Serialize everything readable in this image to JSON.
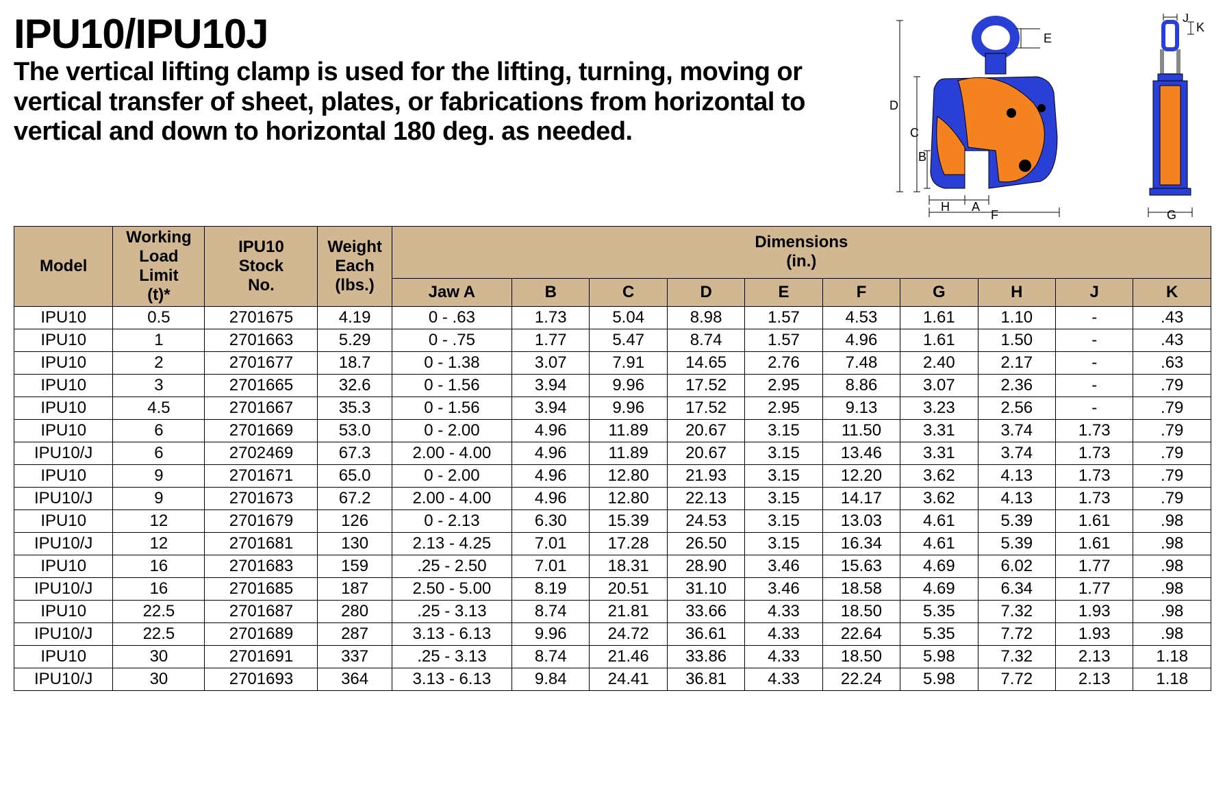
{
  "title": "IPU10/IPU10J",
  "description": "The vertical lifting clamp is used for the lifting, turning, moving or vertical transfer of sheet, plates, or fabrications from horizontal to vertical and down to horizontal 180 deg. as needed.",
  "diagram": {
    "body_color": "#2a3fd6",
    "accent_color": "#f58220",
    "stroke_color": "#000000",
    "label_color": "#000000",
    "labels_front": [
      "A",
      "B",
      "C",
      "D",
      "E",
      "F",
      "H"
    ],
    "labels_side": [
      "G",
      "J",
      "K"
    ]
  },
  "table": {
    "header_bg": "#d1b792",
    "dim_group_header": "Dimensions\n(in.)",
    "columns": [
      "Model",
      "Working Load Limit (t)*",
      "IPU10 Stock No.",
      "Weight Each (lbs.)",
      "Jaw A",
      "B",
      "C",
      "D",
      "E",
      "F",
      "G",
      "H",
      "J",
      "K"
    ],
    "header_lines": {
      "model": "Model",
      "wll_l1": "Working",
      "wll_l2": "Load Limit",
      "wll_l3": "(t)*",
      "stock_l1": "IPU10",
      "stock_l2": "Stock",
      "stock_l3": "No.",
      "wt_l1": "Weight",
      "wt_l2": "Each",
      "wt_l3": "(lbs.)",
      "dims_l1": "Dimensions",
      "dims_l2": "(in.)",
      "jaw": "Jaw A",
      "B": "B",
      "C": "C",
      "D": "D",
      "E": "E",
      "F": "F",
      "G": "G",
      "H": "H",
      "J": "J",
      "K": "K"
    },
    "rows": [
      [
        "IPU10",
        "0.5",
        "2701675",
        "4.19",
        "0 - .63",
        "1.73",
        "5.04",
        "8.98",
        "1.57",
        "4.53",
        "1.61",
        "1.10",
        "-",
        ".43"
      ],
      [
        "IPU10",
        "1",
        "2701663",
        "5.29",
        "0 - .75",
        "1.77",
        "5.47",
        "8.74",
        "1.57",
        "4.96",
        "1.61",
        "1.50",
        "-",
        ".43"
      ],
      [
        "IPU10",
        "2",
        "2701677",
        "18.7",
        "0 - 1.38",
        "3.07",
        "7.91",
        "14.65",
        "2.76",
        "7.48",
        "2.40",
        "2.17",
        "-",
        ".63"
      ],
      [
        "IPU10",
        "3",
        "2701665",
        "32.6",
        "0 - 1.56",
        "3.94",
        "9.96",
        "17.52",
        "2.95",
        "8.86",
        "3.07",
        "2.36",
        "-",
        ".79"
      ],
      [
        "IPU10",
        "4.5",
        "2701667",
        "35.3",
        "0 - 1.56",
        "3.94",
        "9.96",
        "17.52",
        "2.95",
        "9.13",
        "3.23",
        "2.56",
        "-",
        ".79"
      ],
      [
        "IPU10",
        "6",
        "2701669",
        "53.0",
        "0 - 2.00",
        "4.96",
        "11.89",
        "20.67",
        "3.15",
        "11.50",
        "3.31",
        "3.74",
        "1.73",
        ".79"
      ],
      [
        "IPU10/J",
        "6",
        "2702469",
        "67.3",
        "2.00 - 4.00",
        "4.96",
        "11.89",
        "20.67",
        "3.15",
        "13.46",
        "3.31",
        "3.74",
        "1.73",
        ".79"
      ],
      [
        "IPU10",
        "9",
        "2701671",
        "65.0",
        "0 - 2.00",
        "4.96",
        "12.80",
        "21.93",
        "3.15",
        "12.20",
        "3.62",
        "4.13",
        "1.73",
        ".79"
      ],
      [
        "IPU10/J",
        "9",
        "2701673",
        "67.2",
        "2.00 - 4.00",
        "4.96",
        "12.80",
        "22.13",
        "3.15",
        "14.17",
        "3.62",
        "4.13",
        "1.73",
        ".79"
      ],
      [
        "IPU10",
        "12",
        "2701679",
        "126",
        "0 - 2.13",
        "6.30",
        "15.39",
        "24.53",
        "3.15",
        "13.03",
        "4.61",
        "5.39",
        "1.61",
        ".98"
      ],
      [
        "IPU10/J",
        "12",
        "2701681",
        "130",
        "2.13 - 4.25",
        "7.01",
        "17.28",
        "26.50",
        "3.15",
        "16.34",
        "4.61",
        "5.39",
        "1.61",
        ".98"
      ],
      [
        "IPU10",
        "16",
        "2701683",
        "159",
        ".25 - 2.50",
        "7.01",
        "18.31",
        "28.90",
        "3.46",
        "15.63",
        "4.69",
        "6.02",
        "1.77",
        ".98"
      ],
      [
        "IPU10/J",
        "16",
        "2701685",
        "187",
        "2.50 - 5.00",
        "8.19",
        "20.51",
        "31.10",
        "3.46",
        "18.58",
        "4.69",
        "6.34",
        "1.77",
        ".98"
      ],
      [
        "IPU10",
        "22.5",
        "2701687",
        "280",
        ".25 - 3.13",
        "8.74",
        "21.81",
        "33.66",
        "4.33",
        "18.50",
        "5.35",
        "7.32",
        "1.93",
        ".98"
      ],
      [
        "IPU10/J",
        "22.5",
        "2701689",
        "287",
        "3.13 - 6.13",
        "9.96",
        "24.72",
        "36.61",
        "4.33",
        "22.64",
        "5.35",
        "7.72",
        "1.93",
        ".98"
      ],
      [
        "IPU10",
        "30",
        "2701691",
        "337",
        ".25 - 3.13",
        "8.74",
        "21.46",
        "33.86",
        "4.33",
        "18.50",
        "5.98",
        "7.32",
        "2.13",
        "1.18"
      ],
      [
        "IPU10/J",
        "30",
        "2701693",
        "364",
        "3.13 - 6.13",
        "9.84",
        "24.41",
        "36.81",
        "4.33",
        "22.24",
        "5.98",
        "7.72",
        "2.13",
        "1.18"
      ]
    ]
  }
}
